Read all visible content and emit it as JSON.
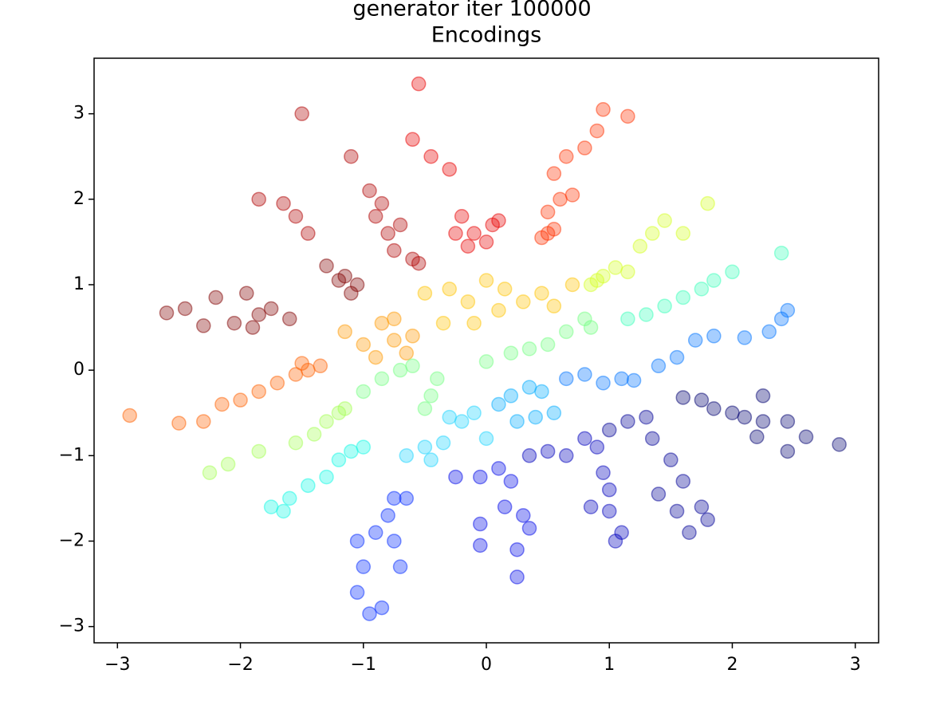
{
  "chart_data": {
    "type": "scatter",
    "suptitle": "generator iter 100000",
    "title": "Encodings",
    "xlim": [
      -3.19,
      3.19
    ],
    "ylim": [
      -3.19,
      3.65
    ],
    "xticks": [
      {
        "value": -3,
        "label": "−3"
      },
      {
        "value": -2,
        "label": "−2"
      },
      {
        "value": -1,
        "label": "−1"
      },
      0,
      1,
      2,
      3
    ],
    "yticks": [
      {
        "value": -3,
        "label": "−3"
      },
      {
        "value": -2,
        "label": "−2"
      },
      {
        "value": -1,
        "label": "−1"
      },
      0,
      1,
      2,
      3
    ],
    "alpha": 0.35,
    "series": [
      {
        "color": "#800000",
        "x": [
          -2.6,
          -2.45,
          -2.3,
          -2.2,
          -2.05,
          -1.95,
          -1.85,
          -1.75,
          -1.6,
          -1.9,
          -1.3,
          -1.15,
          -1.05,
          -1.1,
          -1.2
        ],
        "y": [
          0.67,
          0.72,
          0.52,
          0.85,
          0.55,
          0.9,
          0.65,
          0.72,
          0.6,
          0.5,
          1.22,
          1.1,
          1.0,
          0.9,
          1.05
        ]
      },
      {
        "color": "#b00000",
        "x": [
          -1.1,
          -0.95,
          -0.9,
          -0.8,
          -0.75,
          -0.6,
          -0.55,
          -0.85,
          -0.7,
          -1.5,
          -1.85,
          -1.65,
          -1.55,
          -1.45
        ],
        "y": [
          2.5,
          2.1,
          1.8,
          1.6,
          1.4,
          1.3,
          1.25,
          1.95,
          1.7,
          3.0,
          2.0,
          1.95,
          1.8,
          1.6
        ]
      },
      {
        "color": "#e80000",
        "x": [
          -0.55,
          -0.6,
          -0.45,
          -0.3,
          -0.2,
          -0.1,
          0.0,
          -0.15,
          0.05,
          -0.25,
          0.1
        ],
        "y": [
          3.35,
          2.7,
          2.5,
          2.35,
          1.8,
          1.6,
          1.5,
          1.45,
          1.7,
          1.6,
          1.75
        ]
      },
      {
        "color": "#ff3000",
        "x": [
          0.5,
          0.45,
          0.55,
          0.6,
          0.7,
          0.55,
          0.65,
          0.8,
          0.95,
          1.15,
          0.9,
          0.5
        ],
        "y": [
          1.6,
          1.55,
          1.65,
          2.0,
          2.05,
          2.3,
          2.5,
          2.6,
          3.05,
          2.97,
          2.8,
          1.85
        ]
      },
      {
        "color": "#d4ff22",
        "x": [
          0.85,
          0.95,
          1.05,
          1.15,
          1.25,
          1.35,
          1.45,
          1.6,
          1.8,
          0.9
        ],
        "y": [
          1.0,
          1.1,
          1.2,
          1.15,
          1.45,
          1.6,
          1.75,
          1.6,
          1.95,
          1.05
        ]
      },
      {
        "color": "#ffc400",
        "x": [
          0.0,
          0.15,
          0.3,
          0.45,
          0.55,
          0.7,
          -0.3,
          -0.15,
          -0.35,
          -0.1,
          0.1,
          -0.5
        ],
        "y": [
          1.05,
          0.95,
          0.8,
          0.9,
          0.75,
          1.0,
          0.95,
          0.8,
          0.55,
          0.55,
          0.7,
          0.9
        ]
      },
      {
        "color": "#ff9800",
        "x": [
          -1.15,
          -1.0,
          -0.85,
          -0.75,
          -0.65,
          -0.75,
          -0.9,
          -0.6
        ],
        "y": [
          0.45,
          0.3,
          0.55,
          0.35,
          0.2,
          0.6,
          0.15,
          0.4
        ]
      },
      {
        "color": "#ff6000",
        "x": [
          -2.9,
          -2.5,
          -2.3,
          -2.15,
          -2.0,
          -1.85,
          -1.7,
          -1.55,
          -1.45,
          -1.35,
          -1.5
        ],
        "y": [
          -0.53,
          -0.62,
          -0.6,
          -0.4,
          -0.35,
          -0.25,
          -0.15,
          -0.05,
          0.0,
          0.05,
          0.08
        ]
      },
      {
        "color": "#a4ff52",
        "x": [
          -1.2,
          -1.3,
          -1.4,
          -1.55,
          -1.85,
          -2.1,
          -2.25,
          -1.15
        ],
        "y": [
          -0.5,
          -0.6,
          -0.75,
          -0.85,
          -0.95,
          -1.1,
          -1.2,
          -0.45
        ]
      },
      {
        "color": "#74ff82",
        "x": [
          -1.0,
          -0.85,
          -0.7,
          -0.6,
          -0.4,
          -0.45,
          -0.5,
          0.0,
          0.2,
          0.35,
          0.5,
          0.65,
          0.8,
          0.85
        ],
        "y": [
          -0.25,
          -0.1,
          0.0,
          0.05,
          -0.1,
          -0.3,
          -0.45,
          0.1,
          0.2,
          0.25,
          0.3,
          0.45,
          0.6,
          0.5
        ]
      },
      {
        "color": "#3cffba",
        "x": [
          1.15,
          1.3,
          1.45,
          1.6,
          1.75,
          1.85,
          2.0,
          2.4
        ],
        "y": [
          0.6,
          0.65,
          0.75,
          0.85,
          0.95,
          1.05,
          1.15,
          1.37
        ]
      },
      {
        "color": "#10f8e4",
        "x": [
          -1.2,
          -1.1,
          -1.0,
          -1.3,
          -1.45,
          -1.6,
          -1.75,
          -1.65
        ],
        "y": [
          -1.05,
          -0.95,
          -0.9,
          -1.25,
          -1.35,
          -1.5,
          -1.6,
          -1.65
        ]
      },
      {
        "color": "#1cd4ff",
        "x": [
          -0.3,
          -0.2,
          -0.1,
          -0.35,
          -0.5,
          -0.65,
          -0.45,
          0.0
        ],
        "y": [
          -0.55,
          -0.6,
          -0.5,
          -0.85,
          -0.9,
          -1.0,
          -1.05,
          -0.8
        ]
      },
      {
        "color": "#00acff",
        "x": [
          0.2,
          0.35,
          0.45,
          0.55,
          0.1,
          0.25,
          0.4
        ],
        "y": [
          -0.3,
          -0.2,
          -0.25,
          -0.5,
          -0.4,
          -0.6,
          -0.55
        ]
      },
      {
        "color": "#0074ff",
        "x": [
          0.65,
          0.8,
          0.95,
          1.1,
          1.2,
          1.4,
          1.55,
          1.7,
          1.85,
          2.1,
          2.3,
          2.45,
          2.4
        ],
        "y": [
          -0.1,
          -0.05,
          -0.15,
          -0.1,
          -0.12,
          0.05,
          0.15,
          0.35,
          0.4,
          0.38,
          0.45,
          0.7,
          0.6
        ]
      },
      {
        "color": "#0028ff",
        "x": [
          -0.75,
          -0.65,
          -0.8,
          -0.9,
          -1.05,
          -1.0,
          -1.05,
          -0.95,
          -0.85,
          -0.7,
          -0.75
        ],
        "y": [
          -1.5,
          -1.5,
          -1.7,
          -1.9,
          -2.0,
          -2.3,
          -2.6,
          -2.85,
          -2.78,
          -2.3,
          -2.0
        ]
      },
      {
        "color": "#0008e8",
        "x": [
          -0.25,
          -0.05,
          0.1,
          0.2,
          0.15,
          0.3,
          0.35,
          0.25,
          0.25,
          -0.05,
          -0.05
        ],
        "y": [
          -1.25,
          -1.25,
          -1.15,
          -1.3,
          -1.6,
          -1.7,
          -1.85,
          -2.1,
          -2.42,
          -2.05,
          -1.8
        ]
      },
      {
        "color": "#0000bc",
        "x": [
          0.35,
          0.5,
          0.65,
          0.8,
          0.9,
          0.95,
          1.0,
          1.0,
          1.1,
          1.05,
          0.85
        ],
        "y": [
          -1.0,
          -0.95,
          -1.0,
          -0.8,
          -0.9,
          -1.2,
          -1.4,
          -1.65,
          -1.9,
          -2.0,
          -1.6
        ]
      },
      {
        "color": "#000096",
        "x": [
          1.0,
          1.15,
          1.3,
          1.35,
          1.5,
          1.6,
          1.4,
          1.55,
          1.75,
          1.65,
          1.8
        ],
        "y": [
          -0.7,
          -0.6,
          -0.55,
          -0.8,
          -1.05,
          -1.3,
          -1.45,
          -1.65,
          -1.6,
          -1.9,
          -1.75
        ]
      },
      {
        "color": "#000070",
        "x": [
          1.6,
          1.75,
          1.85,
          2.0,
          2.1,
          2.25,
          2.25,
          2.45,
          2.45,
          2.6,
          2.87,
          2.2
        ],
        "y": [
          -0.32,
          -0.35,
          -0.45,
          -0.5,
          -0.55,
          -0.6,
          -0.3,
          -0.6,
          -0.95,
          -0.78,
          -0.87,
          -0.78
        ]
      }
    ]
  }
}
